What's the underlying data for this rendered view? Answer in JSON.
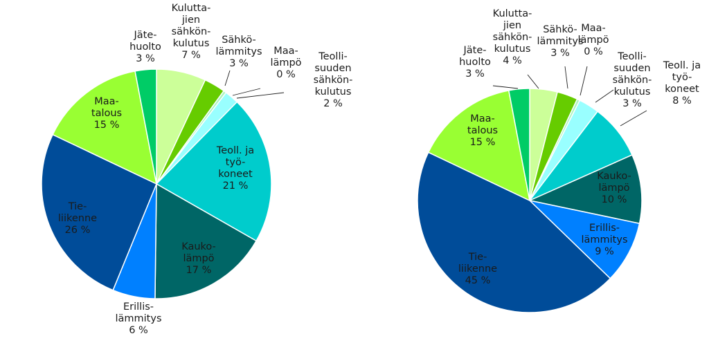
{
  "chart_data": [
    {
      "type": "pie",
      "slices": [
        {
          "label": [
            "Kulutta-",
            "jien",
            "sähkön-",
            "kulutus"
          ],
          "pct_text": "7 %",
          "value": 7,
          "color": "#ccff99"
        },
        {
          "label": [
            "Sähkö-",
            "lämmitys"
          ],
          "pct_text": "3 %",
          "value": 3,
          "color": "#66cc00"
        },
        {
          "label": [
            "Maa-",
            "lämpö"
          ],
          "pct_text": "0 %",
          "value": 0.4,
          "color": "#aaf5c0"
        },
        {
          "label": [
            "Teolli-",
            "suuden",
            "sähkön-",
            "kulutus"
          ],
          "pct_text": "2 %",
          "value": 2,
          "color": "#99ffff"
        },
        {
          "label": [
            "Teoll. ja",
            "työ-",
            "koneet"
          ],
          "pct_text": "21 %",
          "value": 21,
          "color": "#00cccc"
        },
        {
          "label": [
            "Kauko-",
            "lämpö"
          ],
          "pct_text": "17 %",
          "value": 17,
          "color": "#006666"
        },
        {
          "label": [
            "Erillis-",
            "lämmitys"
          ],
          "pct_text": "6 %",
          "value": 6,
          "color": "#0080ff"
        },
        {
          "label": [
            "Tie-",
            "liikenne"
          ],
          "pct_text": "26 %",
          "value": 26,
          "color": "#004c99"
        },
        {
          "label": [
            "Maa-",
            "talous"
          ],
          "pct_text": "15 %",
          "value": 15,
          "color": "#99ff33"
        },
        {
          "label": [
            "Jäte-",
            "huolto"
          ],
          "pct_text": "3 %",
          "value": 3,
          "color": "#00cc66"
        }
      ]
    },
    {
      "type": "pie",
      "slices": [
        {
          "label": [
            "Kulutta-",
            "jien",
            "sähkön-",
            "kulutus"
          ],
          "pct_text": "4 %",
          "value": 4,
          "color": "#ccff99"
        },
        {
          "label": [
            "Sähkö-",
            "lämmitys"
          ],
          "pct_text": "3 %",
          "value": 3,
          "color": "#66cc00"
        },
        {
          "label": [
            "Maa-",
            "lämpö"
          ],
          "pct_text": "0 %",
          "value": 0.4,
          "color": "#aaf5c0"
        },
        {
          "label": [
            "Teolli-",
            "suuden",
            "sähkön-",
            "kulutus"
          ],
          "pct_text": "3 %",
          "value": 3,
          "color": "#99ffff"
        },
        {
          "label": [
            "Teoll. ja",
            "työ-",
            "koneet"
          ],
          "pct_text": "8 %",
          "value": 8,
          "color": "#00cccc"
        },
        {
          "label": [
            "Kauko-",
            "lämpö"
          ],
          "pct_text": "10 %",
          "value": 10,
          "color": "#006666"
        },
        {
          "label": [
            "Erillis-",
            "lämmitys"
          ],
          "pct_text": "9 %",
          "value": 9,
          "color": "#0080ff"
        },
        {
          "label": [
            "Tie-",
            "liikenne"
          ],
          "pct_text": "45 %",
          "value": 45,
          "color": "#004c99"
        },
        {
          "label": [
            "Maa-",
            "talous"
          ],
          "pct_text": "15 %",
          "value": 15,
          "color": "#99ff33"
        },
        {
          "label": [
            "Jäte-",
            "huolto"
          ],
          "pct_text": "3 %",
          "value": 3,
          "color": "#00cc66"
        }
      ]
    }
  ]
}
